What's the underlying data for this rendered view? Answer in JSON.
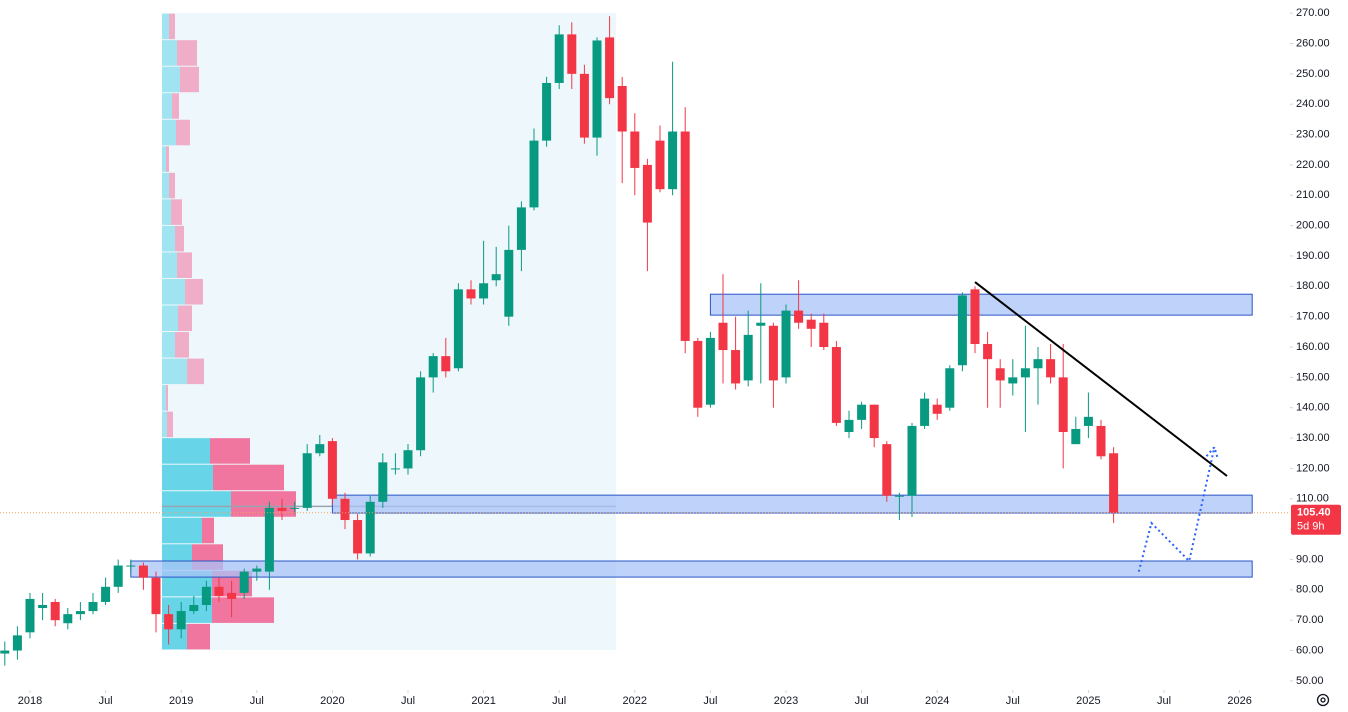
{
  "chart_data": {
    "type": "candlestick",
    "x": [
      "2017-11",
      "2017-12",
      "2018-01",
      "2018-02",
      "2018-03",
      "2018-04",
      "2018-05",
      "2018-06",
      "2018-07",
      "2018-08",
      "2018-09",
      "2018-10",
      "2018-11",
      "2018-12",
      "2019-01",
      "2019-02",
      "2019-03",
      "2019-04",
      "2019-05",
      "2019-06",
      "2019-07",
      "2019-08",
      "2019-09",
      "2019-10",
      "2019-11",
      "2019-12",
      "2020-01",
      "2020-02",
      "2020-03",
      "2020-04",
      "2020-05",
      "2020-06",
      "2020-07",
      "2020-08",
      "2020-09",
      "2020-10",
      "2020-11",
      "2020-12",
      "2021-01",
      "2021-02",
      "2021-03",
      "2021-04",
      "2021-05",
      "2021-06",
      "2021-07",
      "2021-08",
      "2021-09",
      "2021-10",
      "2021-11",
      "2021-12",
      "2022-01",
      "2022-02",
      "2022-03",
      "2022-04",
      "2022-05",
      "2022-06",
      "2022-07",
      "2022-08",
      "2022-09",
      "2022-10",
      "2022-11",
      "2022-12",
      "2023-01",
      "2023-02",
      "2023-03",
      "2023-04",
      "2023-05",
      "2023-06",
      "2023-07",
      "2023-08",
      "2023-09",
      "2023-10",
      "2023-11",
      "2023-12",
      "2024-01",
      "2024-02",
      "2024-03",
      "2024-04",
      "2024-05",
      "2024-06",
      "2024-07",
      "2024-08",
      "2024-09",
      "2024-10",
      "2024-11",
      "2024-12",
      "2025-01",
      "2025-02",
      "2025-03"
    ],
    "open": [
      59,
      60,
      66,
      74,
      76,
      69,
      72,
      73,
      76,
      81,
      88,
      88,
      84,
      72,
      67,
      73,
      75,
      81,
      79,
      79,
      86,
      86,
      107,
      107,
      107,
      125,
      129,
      110,
      103,
      92,
      109,
      120,
      120,
      126,
      150,
      157,
      153,
      179,
      176,
      182,
      170,
      192,
      206,
      228,
      247,
      263,
      250,
      229,
      262,
      246,
      231,
      220,
      228,
      212,
      231,
      162,
      141,
      168,
      159,
      149,
      167,
      167,
      150,
      172,
      169,
      168,
      160,
      132,
      136,
      141,
      128,
      111,
      111,
      134,
      141,
      140,
      154,
      179,
      161,
      153,
      148,
      150,
      153,
      156,
      150,
      128,
      134,
      134,
      125
    ],
    "high": [
      63,
      68,
      79,
      79,
      77,
      74,
      76,
      79,
      84,
      90,
      90,
      89,
      86,
      75,
      76,
      78,
      83,
      84,
      83,
      87,
      88,
      109,
      110,
      109,
      128,
      131,
      130,
      112,
      105,
      111,
      125,
      125,
      128,
      152,
      158,
      163,
      181,
      182,
      195,
      193,
      200,
      208,
      232,
      249,
      266,
      267,
      253,
      262,
      269,
      249,
      237,
      222,
      233,
      254,
      239,
      163,
      165,
      184,
      170,
      172,
      181,
      168,
      174,
      182,
      171,
      171,
      162,
      139,
      142,
      141,
      129,
      112,
      135,
      145,
      143,
      154,
      178,
      180,
      165,
      156,
      156,
      167,
      160,
      161,
      161,
      137,
      145,
      136,
      127
    ],
    "low": [
      55,
      57,
      64,
      70,
      68,
      67,
      70,
      72,
      75,
      79,
      86,
      80,
      66,
      62,
      64,
      72,
      73,
      76,
      71,
      77,
      83,
      80,
      103,
      105,
      106,
      124,
      108,
      100,
      90,
      91,
      107,
      118,
      118,
      124,
      145,
      150,
      152,
      174,
      174,
      180,
      167,
      185,
      205,
      226,
      245,
      245,
      227,
      223,
      240,
      214,
      210,
      185,
      211,
      210,
      158,
      137,
      140,
      148,
      146,
      147,
      148,
      140,
      148,
      166,
      160,
      159,
      134,
      130,
      133,
      127,
      109,
      103,
      104,
      133,
      136,
      139,
      152,
      158,
      140,
      140,
      144,
      132,
      141,
      148,
      120,
      128,
      130,
      123,
      102
    ],
    "close": [
      60,
      65,
      77,
      75,
      70,
      72,
      73,
      76,
      81,
      88,
      88,
      84,
      72,
      67,
      73,
      75,
      81,
      78,
      77,
      86,
      87,
      107,
      106,
      107,
      125,
      128,
      110,
      103,
      92,
      109,
      122,
      120,
      126,
      150,
      157,
      152,
      179,
      176,
      181,
      184,
      192,
      206,
      228,
      247,
      263,
      250,
      229,
      261,
      242,
      231,
      219,
      201,
      212,
      231,
      162,
      140,
      163,
      159,
      148,
      164,
      168,
      149,
      172,
      168,
      166,
      160,
      135,
      136,
      141,
      130,
      111,
      111,
      134,
      143,
      138,
      153,
      177,
      161,
      156,
      149,
      150,
      153,
      156,
      150,
      132,
      133,
      137,
      124,
      105.4
    ],
    "up_color": "#089981",
    "down_color": "#f23645",
    "xlim": [
      "2017-10",
      "2026-05"
    ],
    "xticks": [
      {
        "value": "2018-01",
        "label": "2018"
      },
      {
        "value": "2018-07",
        "label": "Jul"
      },
      {
        "value": "2019-01",
        "label": "2019"
      },
      {
        "value": "2019-07",
        "label": "Jul"
      },
      {
        "value": "2020-01",
        "label": "2020"
      },
      {
        "value": "2020-07",
        "label": "Jul"
      },
      {
        "value": "2021-01",
        "label": "2021"
      },
      {
        "value": "2021-07",
        "label": "Jul"
      },
      {
        "value": "2022-01",
        "label": "2022"
      },
      {
        "value": "2022-07",
        "label": "Jul"
      },
      {
        "value": "2023-01",
        "label": "2023"
      },
      {
        "value": "2023-07",
        "label": "Jul"
      },
      {
        "value": "2024-01",
        "label": "2024"
      },
      {
        "value": "2024-07",
        "label": "Jul"
      },
      {
        "value": "2025-01",
        "label": "2025"
      },
      {
        "value": "2025-07",
        "label": "Jul"
      },
      {
        "value": "2026-01",
        "label": "2026"
      }
    ],
    "ylim": [
      47,
      274
    ],
    "yticks": [
      {
        "value": 50,
        "label": "50.00"
      },
      {
        "value": 60,
        "label": "60.00"
      },
      {
        "value": 70,
        "label": "70.00"
      },
      {
        "value": 80,
        "label": "80.00"
      },
      {
        "value": 90,
        "label": "90.00"
      },
      {
        "value": 100,
        "label": "100.00"
      },
      {
        "value": 110,
        "label": "110.00"
      },
      {
        "value": 120,
        "label": "120.00"
      },
      {
        "value": 130,
        "label": "130.00"
      },
      {
        "value": 140,
        "label": "140.00"
      },
      {
        "value": 150,
        "label": "150.00"
      },
      {
        "value": 160,
        "label": "160.00"
      },
      {
        "value": 170,
        "label": "170.00"
      },
      {
        "value": 180,
        "label": "180.00"
      },
      {
        "value": 190,
        "label": "190.00"
      },
      {
        "value": 200,
        "label": "200.00"
      },
      {
        "value": 210,
        "label": "210.00"
      },
      {
        "value": 220,
        "label": "220.00"
      },
      {
        "value": 230,
        "label": "230.00"
      },
      {
        "value": 240,
        "label": "240.00"
      },
      {
        "value": 250,
        "label": "250.00"
      },
      {
        "value": 260,
        "label": "260.00"
      },
      {
        "value": 270,
        "label": "270.00"
      }
    ],
    "grid": false,
    "zones": [
      {
        "from": "2022-07",
        "to": "2026-02",
        "low": 170.5,
        "high": 177.4
      },
      {
        "from": "2020-01",
        "to": "2026-02",
        "low": 105.3,
        "high": 111.2
      },
      {
        "from": "2018-09",
        "to": "2026-02",
        "low": 84.2,
        "high": 89.5
      }
    ],
    "zone_color": "#a9c3f7",
    "zone_border": "#2a56c6",
    "trendline": [
      {
        "x": "2024-04",
        "y": 181.4
      },
      {
        "x": "2025-12",
        "y": 117.5
      }
    ],
    "projection": [
      {
        "x": "2025-05",
        "y": 86
      },
      {
        "x": "2025-06",
        "y": 102
      },
      {
        "x": "2025-09",
        "y": 89.5
      },
      {
        "x": "2025-11",
        "y": 127
      }
    ],
    "projection_color": "#2962ff",
    "volume_profile": {
      "range": [
        60.2,
        270
      ],
      "buy": [
        7,
        15,
        18,
        10,
        14,
        4,
        7,
        9,
        13,
        15,
        23,
        16,
        13,
        25,
        4,
        5,
        48,
        51,
        69,
        40,
        30,
        50,
        50,
        25
      ],
      "sell": [
        6,
        20,
        19,
        7,
        14,
        3,
        6,
        11,
        9,
        15,
        18,
        14,
        14,
        17,
        2,
        6,
        40,
        71,
        65,
        12,
        31,
        40,
        62,
        23
      ],
      "buy_color": "#5fd3e6",
      "sell_color": "#f06f9a"
    },
    "poc": 107.5,
    "last_price": 105.4,
    "last_price_label": "105.40",
    "countdown": "5d 9h"
  }
}
